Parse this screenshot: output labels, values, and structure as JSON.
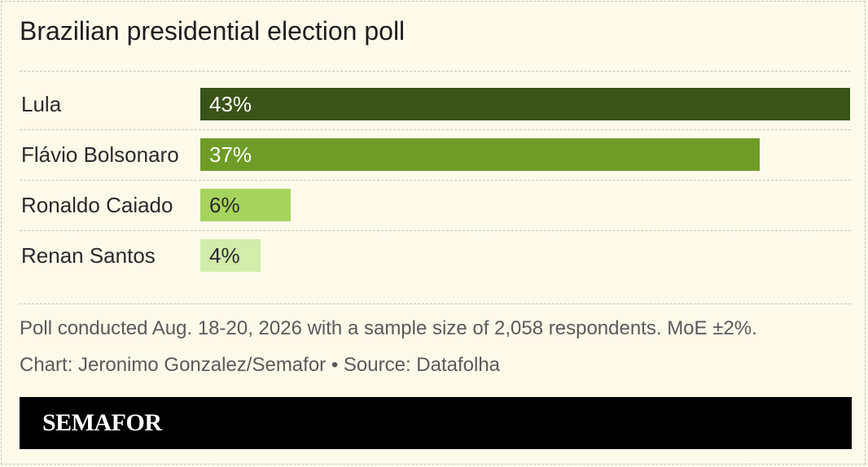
{
  "title": "Brazilian presidential election poll",
  "chart_data": {
    "type": "bar",
    "orientation": "horizontal",
    "categories": [
      "Lula",
      "Flávio Bolsonaro",
      "Ronaldo Caiado",
      "Renan Santos"
    ],
    "values": [
      43,
      37,
      6,
      4
    ],
    "value_labels": [
      "43%",
      "37%",
      "6%",
      "4%"
    ],
    "bar_colors": [
      "#3a5318",
      "#6f9c26",
      "#a6d35e",
      "#d2ecaa"
    ],
    "value_label_colors": [
      "#ffffff",
      "#ffffff",
      "#2a2a2a",
      "#2a2a2a"
    ],
    "xlim": [
      0,
      43
    ],
    "grid": false,
    "legend": "none"
  },
  "footnotes": {
    "note": "Poll conducted Aug. 18-20, 2026 with a sample size of 2,058 respondents. MoE ±2%.",
    "credit": "Chart: Jeronimo Gonzalez/Semafor • Source: Datafolha"
  },
  "brand": {
    "name": "SEMAFOR",
    "background": "#000000"
  },
  "colors": {
    "background": "#fdfaea",
    "divider": "#c9c5b3"
  }
}
